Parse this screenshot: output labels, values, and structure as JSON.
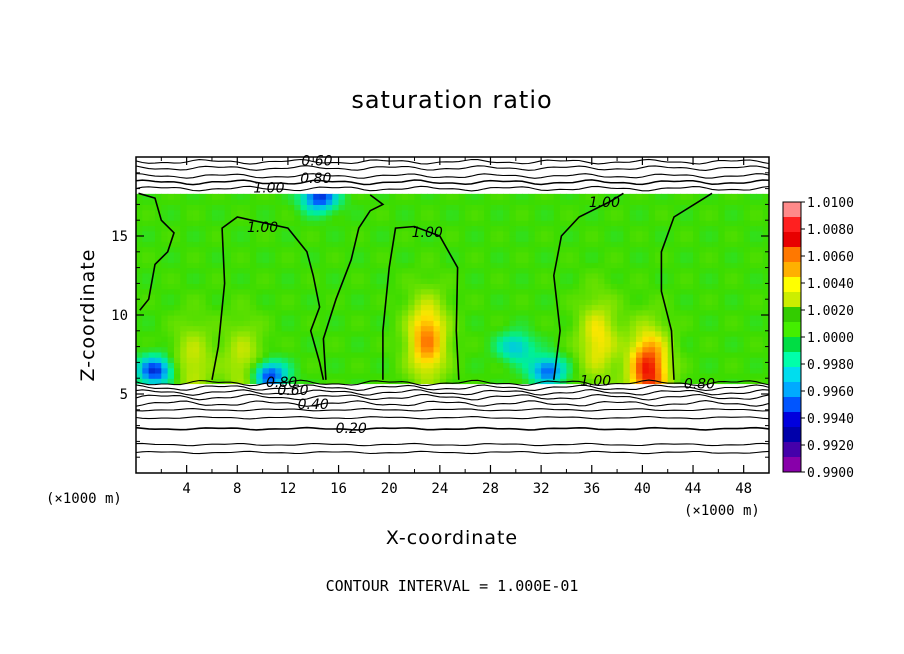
{
  "chart_data": {
    "type": "heatmap",
    "title": "saturation ratio",
    "xlabel": "X-coordinate",
    "ylabel": "Z-coordinate",
    "x_unit": "(×1000 m)",
    "xlim": [
      0,
      50
    ],
    "ylim": [
      0,
      20
    ],
    "x_ticks": [
      "4",
      "8",
      "12",
      "16",
      "20",
      "24",
      "28",
      "32",
      "36",
      "40",
      "44",
      "48"
    ],
    "x_tick_values": [
      4,
      8,
      12,
      16,
      20,
      24,
      28,
      32,
      36,
      40,
      44,
      48
    ],
    "y_ticks": [
      "5",
      "10",
      "15"
    ],
    "y_tick_values": [
      5,
      10,
      15
    ],
    "contour_interval_text": "CONTOUR INTERVAL = 1.000E-01",
    "colorbar": {
      "labels": [
        "1.0100",
        "1.0080",
        "1.0060",
        "1.0040",
        "1.0020",
        "1.0000",
        "0.9980",
        "0.9960",
        "0.9940",
        "0.9920",
        "0.9900"
      ],
      "colors": [
        "#ff8a8a",
        "#ff2020",
        "#e80000",
        "#ff7800",
        "#ffb000",
        "#ffff00",
        "#ccee00",
        "#33cc00",
        "#44ee00",
        "#00dd44",
        "#00ffaa",
        "#00ddee",
        "#00aaff",
        "#0055ff",
        "#0000dd",
        "#0000aa",
        "#4400aa",
        "#8800aa"
      ]
    },
    "contour_labels": [
      {
        "text": "0.60",
        "x": 14.3,
        "y": 19.7
      },
      {
        "text": "0.80",
        "x": 14.2,
        "y": 18.6
      },
      {
        "text": "1.00",
        "x": 10.5,
        "y": 18.0
      },
      {
        "text": "1.00",
        "x": 10.0,
        "y": 15.5
      },
      {
        "text": "1.00",
        "x": 23.0,
        "y": 15.2
      },
      {
        "text": "1.00",
        "x": 37.0,
        "y": 17.1
      },
      {
        "text": "1.00",
        "x": 36.3,
        "y": 5.8
      },
      {
        "text": "0.80",
        "x": 11.5,
        "y": 5.7
      },
      {
        "text": "0.80",
        "x": 44.5,
        "y": 5.6
      },
      {
        "text": "0.60",
        "x": 12.4,
        "y": 5.2
      },
      {
        "text": "0.40",
        "x": 14.0,
        "y": 4.3
      },
      {
        "text": "0.20",
        "x": 17.0,
        "y": 2.8
      }
    ],
    "field": {
      "base_value": 1.0,
      "description_free": true,
      "plumes": [
        {
          "x": 23.0,
          "z": 8.5,
          "peak": 1.006
        },
        {
          "x": 36.5,
          "z": 8.5,
          "peak": 1.004
        },
        {
          "x": 40.5,
          "z": 6.5,
          "peak": 1.008
        },
        {
          "x": 4.5,
          "z": 7.0,
          "peak": 1.003
        },
        {
          "x": 8.5,
          "z": 7.0,
          "peak": 1.003
        }
      ],
      "dry_zones": [
        {
          "x": 1.5,
          "z": 6.5,
          "min": 0.993
        },
        {
          "x": 10.5,
          "z": 6.2,
          "min": 0.993
        },
        {
          "x": 32.5,
          "z": 6.5,
          "min": 0.994
        },
        {
          "x": 30.0,
          "z": 8.0,
          "min": 0.996
        },
        {
          "x": 14.5,
          "z": 17.5,
          "min": 0.993
        }
      ],
      "cloud_layer_bottom": 5.8,
      "cloud_layer_top": 17.8
    }
  }
}
